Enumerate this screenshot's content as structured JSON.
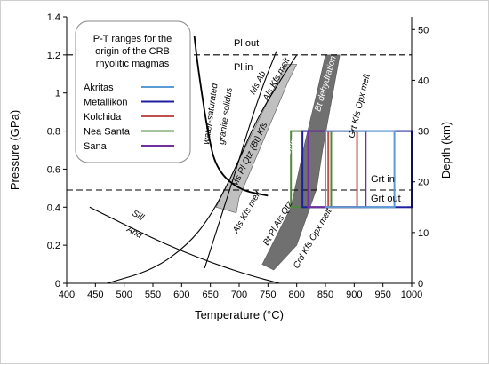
{
  "chart_data": {
    "type": "line",
    "title": "",
    "xlabel": "Temperature (°C)",
    "ylabel": "Pressure (GPa)",
    "y2label": "Depth (km)",
    "xlim": [
      400,
      1000
    ],
    "ylim": [
      0,
      1.4
    ],
    "y2lim": [
      0,
      52.5
    ],
    "x_ticks": [
      "400",
      "450",
      "500",
      "550",
      "600",
      "650",
      "700",
      "750",
      "800",
      "850",
      "900",
      "950",
      "1000"
    ],
    "y_ticks": [
      "0",
      "0.2",
      "0.4",
      "0.6",
      "0.8",
      "1",
      "1.2",
      "1.4"
    ],
    "y2_ticks": [
      "0",
      "10",
      "20",
      "30",
      "40",
      "50"
    ],
    "grid": false,
    "legend_position": "top-left",
    "legend": {
      "title_lines": [
        "P-T ranges for the",
        "origin of the CRB",
        "rhyolitic magmas"
      ],
      "entries": [
        {
          "name": "Akritas",
          "color": "#5b9bd5"
        },
        {
          "name": "Metallikon",
          "color": "#1f1fa0"
        },
        {
          "name": "Kolchida",
          "color": "#c0504d"
        },
        {
          "name": "Nea Santa",
          "color": "#4e8a3e"
        },
        {
          "name": "Sana",
          "color": "#7030a0"
        }
      ]
    },
    "series": [
      {
        "name": "water-saturated granite solidus",
        "x": [
          622,
          630,
          645,
          660,
          700,
          750
        ],
        "y": [
          1.3,
          1.1,
          0.8,
          0.6,
          0.49,
          0.46
        ]
      },
      {
        "name": "Ms Ab Als Kfs melt",
        "x": [
          640,
          660,
          690,
          720,
          745,
          765
        ],
        "y": [
          0.08,
          0.27,
          0.55,
          0.85,
          1.07,
          1.22
        ]
      },
      {
        "name": "Als Kfs melt / Ms Pl Qtz (Bt) Kfs",
        "x": [
          470,
          550,
          610,
          650,
          690,
          730,
          770,
          800
        ],
        "y": [
          0.0,
          0.07,
          0.2,
          0.35,
          0.58,
          0.86,
          1.06,
          1.2
        ]
      },
      {
        "name": "Sill And",
        "x": [
          440,
          480,
          540,
          600,
          660,
          720,
          770
        ],
        "y": [
          0.4,
          0.34,
          0.25,
          0.17,
          0.1,
          0.04,
          0.0
        ]
      },
      {
        "name": "Pl out / Pl in",
        "x": [
          400,
          1000
        ],
        "y": [
          1.2,
          1.2
        ]
      },
      {
        "name": "Grt in / Grt out",
        "x": [
          400,
          1000
        ],
        "y": [
          0.49,
          0.49
        ]
      }
    ],
    "bands": [
      {
        "name": "Ms dehydration melting",
        "color": "#c0c0c0",
        "polygon": [
          [
            660,
            0.4
          ],
          [
            768,
            1.07
          ],
          [
            780,
            1.15
          ],
          [
            800,
            1.15
          ],
          [
            785,
            1.06
          ],
          [
            700,
            0.45
          ],
          [
            695,
            0.37
          ]
        ]
      },
      {
        "name": "Bt dehydration melting",
        "color": "#707070",
        "polygon": [
          [
            740,
            0.1
          ],
          [
            790,
            0.4
          ],
          [
            815,
            0.75
          ],
          [
            835,
            1.0
          ],
          [
            850,
            1.2
          ],
          [
            875,
            1.2
          ],
          [
            860,
            0.95
          ],
          [
            845,
            0.7
          ],
          [
            835,
            0.5
          ],
          [
            800,
            0.2
          ],
          [
            760,
            0.07
          ]
        ]
      }
    ],
    "rectangles": [
      {
        "name": "Nea Santa",
        "color": "#4e8a3e",
        "T": [
          790,
          860
        ],
        "P": [
          0.4,
          0.8
        ]
      },
      {
        "name": "Metallikon",
        "color": "#1f1fa0",
        "T": [
          810,
          1000
        ],
        "P": [
          0.4,
          0.8
        ]
      },
      {
        "name": "Sana",
        "color": "#7030a0",
        "T": [
          820,
          920
        ],
        "P": [
          0.4,
          0.8
        ]
      },
      {
        "name": "Kolchida",
        "color": "#c0504d",
        "T": [
          855,
          905
        ],
        "P": [
          0.4,
          0.8
        ]
      },
      {
        "name": "Akritas",
        "color": "#5b9bd5",
        "T": [
          850,
          970
        ],
        "P": [
          0.4,
          0.8
        ]
      }
    ],
    "annotations": [
      {
        "text": "Pl out"
      },
      {
        "text": "Pl in"
      },
      {
        "text": "Grt in"
      },
      {
        "text": "Grt out"
      },
      {
        "text": "Sill"
      },
      {
        "text": "And"
      },
      {
        "text": "water-saturated"
      },
      {
        "text": "granite solidus"
      },
      {
        "text": "Ms Ab"
      },
      {
        "text": "Als Kfs melt"
      },
      {
        "text": "Ms Pl Qtz (Bt) Kfs"
      },
      {
        "text": "Ms dehydration"
      },
      {
        "text": "melting"
      },
      {
        "text": "Bt dehydration"
      },
      {
        "text": "melting"
      },
      {
        "text": "Grt Kfs Opx melt"
      },
      {
        "text": "Als Kfs melt"
      },
      {
        "text": "Bt Pl Als Qtz"
      },
      {
        "text": "Crd Kfs Opx melt"
      }
    ]
  }
}
